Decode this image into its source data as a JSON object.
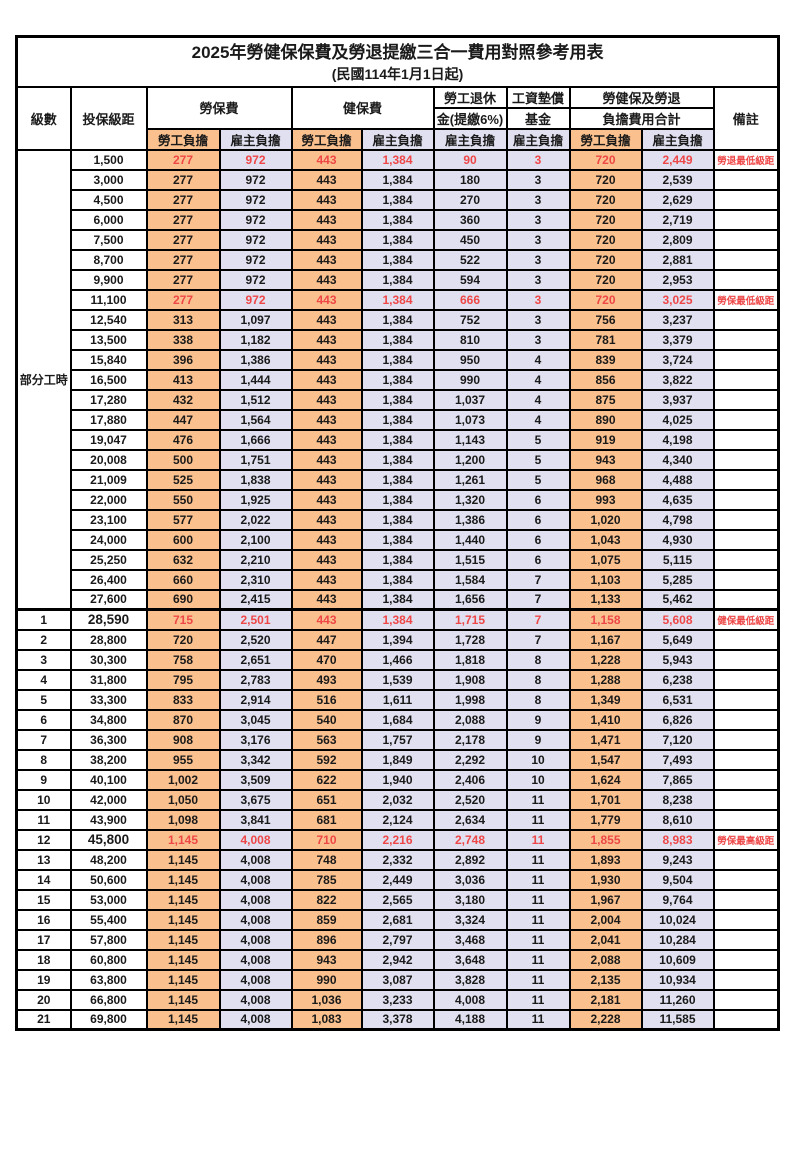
{
  "title": "2025年勞健保保費及勞退提繳三合一費用對照參考用表",
  "subtitle": "(民國114年1月1日起)",
  "colors": {
    "employee_cell": "#fac08d",
    "employer_cell": "#e0e0f0",
    "highlight_text": "#ee4747",
    "border": "#000000"
  },
  "header": {
    "level": "級數",
    "bracket": "投保級距",
    "labor_insurance": "勞保費",
    "health_insurance": "健保費",
    "pension_line1": "勞工退休",
    "pension_line2": "金(提繳6%)",
    "wage_fund_line1": "工資墊償",
    "wage_fund_line2": "基金",
    "total_line1": "勞健保及勞退",
    "total_line2": "負擔費用合計",
    "remark": "備註",
    "employee_share": "勞工負擔",
    "employer_share": "雇主負擔"
  },
  "part_time": {
    "label": "部分工時",
    "row_count": 23
  },
  "rows": [
    {
      "level": "",
      "bracket": "1,500",
      "v": [
        "277",
        "972",
        "443",
        "1,384",
        "90",
        "3",
        "720",
        "2,449"
      ],
      "remark": "勞退最低級距",
      "red": true
    },
    {
      "level": "",
      "bracket": "3,000",
      "v": [
        "277",
        "972",
        "443",
        "1,384",
        "180",
        "3",
        "720",
        "2,539"
      ],
      "remark": ""
    },
    {
      "level": "",
      "bracket": "4,500",
      "v": [
        "277",
        "972",
        "443",
        "1,384",
        "270",
        "3",
        "720",
        "2,629"
      ],
      "remark": ""
    },
    {
      "level": "",
      "bracket": "6,000",
      "v": [
        "277",
        "972",
        "443",
        "1,384",
        "360",
        "3",
        "720",
        "2,719"
      ],
      "remark": ""
    },
    {
      "level": "",
      "bracket": "7,500",
      "v": [
        "277",
        "972",
        "443",
        "1,384",
        "450",
        "3",
        "720",
        "2,809"
      ],
      "remark": ""
    },
    {
      "level": "",
      "bracket": "8,700",
      "v": [
        "277",
        "972",
        "443",
        "1,384",
        "522",
        "3",
        "720",
        "2,881"
      ],
      "remark": ""
    },
    {
      "level": "",
      "bracket": "9,900",
      "v": [
        "277",
        "972",
        "443",
        "1,384",
        "594",
        "3",
        "720",
        "2,953"
      ],
      "remark": ""
    },
    {
      "level": "",
      "bracket": "11,100",
      "v": [
        "277",
        "972",
        "443",
        "1,384",
        "666",
        "3",
        "720",
        "3,025"
      ],
      "remark": "勞保最低級距",
      "red": true
    },
    {
      "level": "",
      "bracket": "12,540",
      "v": [
        "313",
        "1,097",
        "443",
        "1,384",
        "752",
        "3",
        "756",
        "3,237"
      ],
      "remark": ""
    },
    {
      "level": "",
      "bracket": "13,500",
      "v": [
        "338",
        "1,182",
        "443",
        "1,384",
        "810",
        "3",
        "781",
        "3,379"
      ],
      "remark": ""
    },
    {
      "level": "",
      "bracket": "15,840",
      "v": [
        "396",
        "1,386",
        "443",
        "1,384",
        "950",
        "4",
        "839",
        "3,724"
      ],
      "remark": ""
    },
    {
      "level": "",
      "bracket": "16,500",
      "v": [
        "413",
        "1,444",
        "443",
        "1,384",
        "990",
        "4",
        "856",
        "3,822"
      ],
      "remark": ""
    },
    {
      "level": "",
      "bracket": "17,280",
      "v": [
        "432",
        "1,512",
        "443",
        "1,384",
        "1,037",
        "4",
        "875",
        "3,937"
      ],
      "remark": ""
    },
    {
      "level": "",
      "bracket": "17,880",
      "v": [
        "447",
        "1,564",
        "443",
        "1,384",
        "1,073",
        "4",
        "890",
        "4,025"
      ],
      "remark": ""
    },
    {
      "level": "",
      "bracket": "19,047",
      "v": [
        "476",
        "1,666",
        "443",
        "1,384",
        "1,143",
        "5",
        "919",
        "4,198"
      ],
      "remark": ""
    },
    {
      "level": "",
      "bracket": "20,008",
      "v": [
        "500",
        "1,751",
        "443",
        "1,384",
        "1,200",
        "5",
        "943",
        "4,340"
      ],
      "remark": ""
    },
    {
      "level": "",
      "bracket": "21,009",
      "v": [
        "525",
        "1,838",
        "443",
        "1,384",
        "1,261",
        "5",
        "968",
        "4,488"
      ],
      "remark": ""
    },
    {
      "level": "",
      "bracket": "22,000",
      "v": [
        "550",
        "1,925",
        "443",
        "1,384",
        "1,320",
        "6",
        "993",
        "4,635"
      ],
      "remark": ""
    },
    {
      "level": "",
      "bracket": "23,100",
      "v": [
        "577",
        "2,022",
        "443",
        "1,384",
        "1,386",
        "6",
        "1,020",
        "4,798"
      ],
      "remark": ""
    },
    {
      "level": "",
      "bracket": "24,000",
      "v": [
        "600",
        "2,100",
        "443",
        "1,384",
        "1,440",
        "6",
        "1,043",
        "4,930"
      ],
      "remark": ""
    },
    {
      "level": "",
      "bracket": "25,250",
      "v": [
        "632",
        "2,210",
        "443",
        "1,384",
        "1,515",
        "6",
        "1,075",
        "5,115"
      ],
      "remark": ""
    },
    {
      "level": "",
      "bracket": "26,400",
      "v": [
        "660",
        "2,310",
        "443",
        "1,384",
        "1,584",
        "7",
        "1,103",
        "5,285"
      ],
      "remark": ""
    },
    {
      "level": "",
      "bracket": "27,600",
      "v": [
        "690",
        "2,415",
        "443",
        "1,384",
        "1,656",
        "7",
        "1,133",
        "5,462"
      ],
      "remark": ""
    },
    {
      "level": "1",
      "bracket": "28,590",
      "v": [
        "715",
        "2,501",
        "443",
        "1,384",
        "1,715",
        "7",
        "1,158",
        "5,608"
      ],
      "remark": "健保最低級距",
      "red": true,
      "em": true,
      "section_start": true
    },
    {
      "level": "2",
      "bracket": "28,800",
      "v": [
        "720",
        "2,520",
        "447",
        "1,394",
        "1,728",
        "7",
        "1,167",
        "5,649"
      ],
      "remark": ""
    },
    {
      "level": "3",
      "bracket": "30,300",
      "v": [
        "758",
        "2,651",
        "470",
        "1,466",
        "1,818",
        "8",
        "1,228",
        "5,943"
      ],
      "remark": ""
    },
    {
      "level": "4",
      "bracket": "31,800",
      "v": [
        "795",
        "2,783",
        "493",
        "1,539",
        "1,908",
        "8",
        "1,288",
        "6,238"
      ],
      "remark": ""
    },
    {
      "level": "5",
      "bracket": "33,300",
      "v": [
        "833",
        "2,914",
        "516",
        "1,611",
        "1,998",
        "8",
        "1,349",
        "6,531"
      ],
      "remark": ""
    },
    {
      "level": "6",
      "bracket": "34,800",
      "v": [
        "870",
        "3,045",
        "540",
        "1,684",
        "2,088",
        "9",
        "1,410",
        "6,826"
      ],
      "remark": ""
    },
    {
      "level": "7",
      "bracket": "36,300",
      "v": [
        "908",
        "3,176",
        "563",
        "1,757",
        "2,178",
        "9",
        "1,471",
        "7,120"
      ],
      "remark": ""
    },
    {
      "level": "8",
      "bracket": "38,200",
      "v": [
        "955",
        "3,342",
        "592",
        "1,849",
        "2,292",
        "10",
        "1,547",
        "7,493"
      ],
      "remark": ""
    },
    {
      "level": "9",
      "bracket": "40,100",
      "v": [
        "1,002",
        "3,509",
        "622",
        "1,940",
        "2,406",
        "10",
        "1,624",
        "7,865"
      ],
      "remark": ""
    },
    {
      "level": "10",
      "bracket": "42,000",
      "v": [
        "1,050",
        "3,675",
        "651",
        "2,032",
        "2,520",
        "11",
        "1,701",
        "8,238"
      ],
      "remark": ""
    },
    {
      "level": "11",
      "bracket": "43,900",
      "v": [
        "1,098",
        "3,841",
        "681",
        "2,124",
        "2,634",
        "11",
        "1,779",
        "8,610"
      ],
      "remark": ""
    },
    {
      "level": "12",
      "bracket": "45,800",
      "v": [
        "1,145",
        "4,008",
        "710",
        "2,216",
        "2,748",
        "11",
        "1,855",
        "8,983"
      ],
      "remark": "勞保最高級距",
      "red": true,
      "em": true
    },
    {
      "level": "13",
      "bracket": "48,200",
      "v": [
        "1,145",
        "4,008",
        "748",
        "2,332",
        "2,892",
        "11",
        "1,893",
        "9,243"
      ],
      "remark": ""
    },
    {
      "level": "14",
      "bracket": "50,600",
      "v": [
        "1,145",
        "4,008",
        "785",
        "2,449",
        "3,036",
        "11",
        "1,930",
        "9,504"
      ],
      "remark": ""
    },
    {
      "level": "15",
      "bracket": "53,000",
      "v": [
        "1,145",
        "4,008",
        "822",
        "2,565",
        "3,180",
        "11",
        "1,967",
        "9,764"
      ],
      "remark": ""
    },
    {
      "level": "16",
      "bracket": "55,400",
      "v": [
        "1,145",
        "4,008",
        "859",
        "2,681",
        "3,324",
        "11",
        "2,004",
        "10,024"
      ],
      "remark": ""
    },
    {
      "level": "17",
      "bracket": "57,800",
      "v": [
        "1,145",
        "4,008",
        "896",
        "2,797",
        "3,468",
        "11",
        "2,041",
        "10,284"
      ],
      "remark": ""
    },
    {
      "level": "18",
      "bracket": "60,800",
      "v": [
        "1,145",
        "4,008",
        "943",
        "2,942",
        "3,648",
        "11",
        "2,088",
        "10,609"
      ],
      "remark": ""
    },
    {
      "level": "19",
      "bracket": "63,800",
      "v": [
        "1,145",
        "4,008",
        "990",
        "3,087",
        "3,828",
        "11",
        "2,135",
        "10,934"
      ],
      "remark": ""
    },
    {
      "level": "20",
      "bracket": "66,800",
      "v": [
        "1,145",
        "4,008",
        "1,036",
        "3,233",
        "4,008",
        "11",
        "2,181",
        "11,260"
      ],
      "remark": ""
    },
    {
      "level": "21",
      "bracket": "69,800",
      "v": [
        "1,145",
        "4,008",
        "1,083",
        "3,378",
        "4,188",
        "11",
        "2,228",
        "11,585"
      ],
      "remark": ""
    }
  ]
}
